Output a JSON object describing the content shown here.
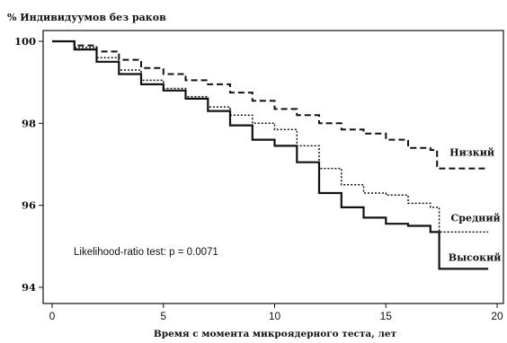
{
  "chart_data": {
    "type": "line",
    "title": "% Индивидуумов без раков",
    "xlabel": "Время с момента микроядерного теста,  лет",
    "ylabel": "",
    "xlim": [
      0,
      20
    ],
    "ylim": [
      94,
      100
    ],
    "x_ticks": [
      "0",
      "5",
      "10",
      "15",
      "20"
    ],
    "y_ticks": [
      "94",
      "96",
      "98",
      "100"
    ],
    "annotation": "Likelihood-ratio test: p = 0.0071",
    "grid": false,
    "series": [
      {
        "name": "Низкий",
        "style": "dashed",
        "x": [
          0,
          1,
          2,
          3,
          4,
          5,
          6,
          7,
          8,
          9,
          10,
          11,
          12,
          13,
          14,
          15,
          16,
          17,
          17.3,
          17.3,
          19.6
        ],
        "y": [
          100,
          99.9,
          99.75,
          99.55,
          99.35,
          99.2,
          99.05,
          98.95,
          98.75,
          98.55,
          98.35,
          98.2,
          98.0,
          97.85,
          97.75,
          97.6,
          97.4,
          97.35,
          97.35,
          96.9,
          96.9
        ]
      },
      {
        "name": "Средний",
        "style": "dotted",
        "x": [
          0,
          1,
          2,
          3,
          4,
          5,
          6,
          7,
          8,
          9,
          10,
          11,
          12,
          13,
          14,
          15,
          16,
          17,
          17.4,
          17.4,
          19.6
        ],
        "y": [
          100,
          99.85,
          99.6,
          99.3,
          99.05,
          98.85,
          98.65,
          98.4,
          98.2,
          98.0,
          97.85,
          97.45,
          96.9,
          96.5,
          96.3,
          96.25,
          96.05,
          95.95,
          95.95,
          95.35,
          95.35
        ]
      },
      {
        "name": "Высокий",
        "style": "solid",
        "x": [
          0,
          1,
          2,
          3,
          4,
          5,
          6,
          7,
          8,
          9,
          10,
          11,
          12,
          13,
          14,
          15,
          16,
          17,
          17.4,
          17.4,
          19.6
        ],
        "y": [
          100,
          99.8,
          99.5,
          99.2,
          98.95,
          98.8,
          98.6,
          98.3,
          97.95,
          97.6,
          97.45,
          97.05,
          96.3,
          95.95,
          95.7,
          95.55,
          95.5,
          95.35,
          95.35,
          94.45,
          94.45
        ]
      }
    ]
  }
}
